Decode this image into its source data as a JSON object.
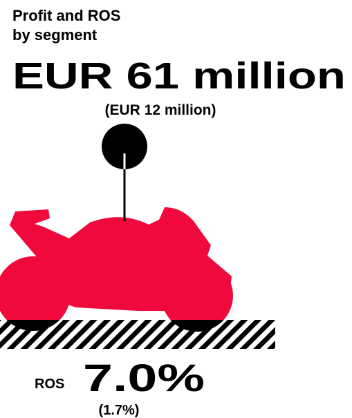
{
  "header": {
    "title_line1": "Profit and ROS",
    "title_line2": "by segment"
  },
  "profit": {
    "value": "EUR 61 million",
    "previous": "(EUR 12 million)"
  },
  "ros": {
    "label": "ROS",
    "value": "7.0%",
    "previous": "(1.7%)"
  }
}
